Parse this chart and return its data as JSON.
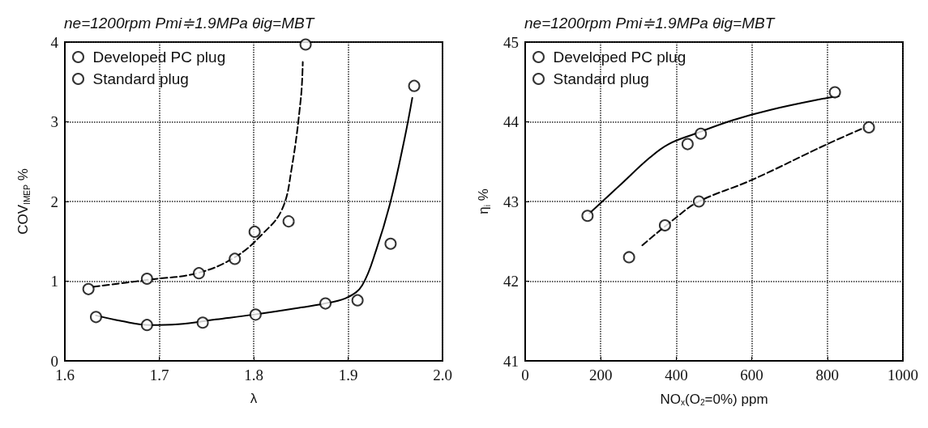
{
  "chart_data": [
    {
      "type": "scatter",
      "title": "ne=1200rpm Pmi≑1.9MPa θig=MBT",
      "xlabel": "λ",
      "ylabel": "COV$_{IMEP}$ %",
      "xlim": [
        1.6,
        2.0
      ],
      "xticks": [
        1.6,
        1.7,
        1.8,
        1.9,
        {
          "value": 2.0,
          "label": "2.0"
        }
      ],
      "ylim": [
        0,
        4
      ],
      "yticks": [
        0,
        1,
        2,
        3,
        4
      ],
      "grid": true,
      "legend": "top left",
      "series": [
        {
          "name": "Developed PC plug",
          "marker": "circle",
          "color": "#000000",
          "x": [
            1.633,
            1.687,
            1.746,
            1.802,
            1.876,
            1.91,
            1.945,
            1.97
          ],
          "values": [
            0.55,
            0.45,
            0.48,
            0.58,
            0.72,
            0.76,
            1.47,
            3.45
          ]
        },
        {
          "name": "Standard plug",
          "marker": "circle",
          "color": "#000000",
          "x": [
            1.625,
            1.687,
            1.742,
            1.78,
            1.801,
            1.837,
            1.855
          ],
          "values": [
            0.9,
            1.03,
            1.1,
            1.28,
            1.62,
            1.75,
            3.97
          ]
        },
        {
          "type": "line",
          "marker": "none",
          "color": "#000000",
          "line_style": "solid",
          "x": [
            1.633,
            1.66,
            1.69,
            1.72,
            1.76,
            1.8,
            1.85,
            1.88,
            1.9,
            1.915,
            1.93,
            1.945,
            1.96,
            1.968
          ],
          "values": [
            0.57,
            0.5,
            0.45,
            0.46,
            0.52,
            0.58,
            0.67,
            0.73,
            0.8,
            0.95,
            1.4,
            2.0,
            2.8,
            3.3
          ]
        },
        {
          "type": "line",
          "marker": "none",
          "color": "#000000",
          "line_style": "dashed",
          "x": [
            1.63,
            1.69,
            1.74,
            1.78,
            1.81,
            1.83,
            1.84,
            1.85,
            1.852
          ],
          "values": [
            0.93,
            1.02,
            1.1,
            1.3,
            1.6,
            1.9,
            2.4,
            3.3,
            3.75
          ]
        }
      ]
    },
    {
      "type": "scatter",
      "title": "ne=1200rpm Pmi≑1.9MPa θig=MBT",
      "xlabel": "NO$_{x}$(O$_{2}$=0%) ppm",
      "ylabel": "η$_{i}$ %",
      "xlim": [
        0,
        1000
      ],
      "xticks": [
        0,
        200,
        400,
        600,
        800,
        1000
      ],
      "ylim": [
        41,
        45
      ],
      "yticks": [
        41,
        42,
        43,
        44,
        45
      ],
      "grid": true,
      "legend": "top left",
      "series": [
        {
          "name": "Developed PC plug",
          "marker": "circle",
          "color": "#000000",
          "x": [
            165,
            430,
            465,
            820
          ],
          "values": [
            42.82,
            43.72,
            43.85,
            44.37
          ]
        },
        {
          "name": "Standard plug",
          "marker": "circle",
          "color": "#000000",
          "x": [
            275,
            370,
            460,
            910
          ],
          "values": [
            42.3,
            42.7,
            43.0,
            43.93
          ]
        },
        {
          "type": "line",
          "marker": "none",
          "color": "#000000",
          "line_style": "solid",
          "x": [
            170,
            250,
            330,
            380,
            450,
            550,
            650,
            800,
            830
          ],
          "values": [
            42.85,
            43.2,
            43.55,
            43.72,
            43.85,
            44.02,
            44.15,
            44.3,
            44.32
          ]
        },
        {
          "type": "line",
          "marker": "none",
          "color": "#000000",
          "line_style": "dashed",
          "x": [
            310,
            400,
            460,
            600,
            800,
            900
          ],
          "values": [
            42.45,
            42.8,
            43.0,
            43.27,
            43.72,
            43.93
          ]
        }
      ]
    }
  ]
}
